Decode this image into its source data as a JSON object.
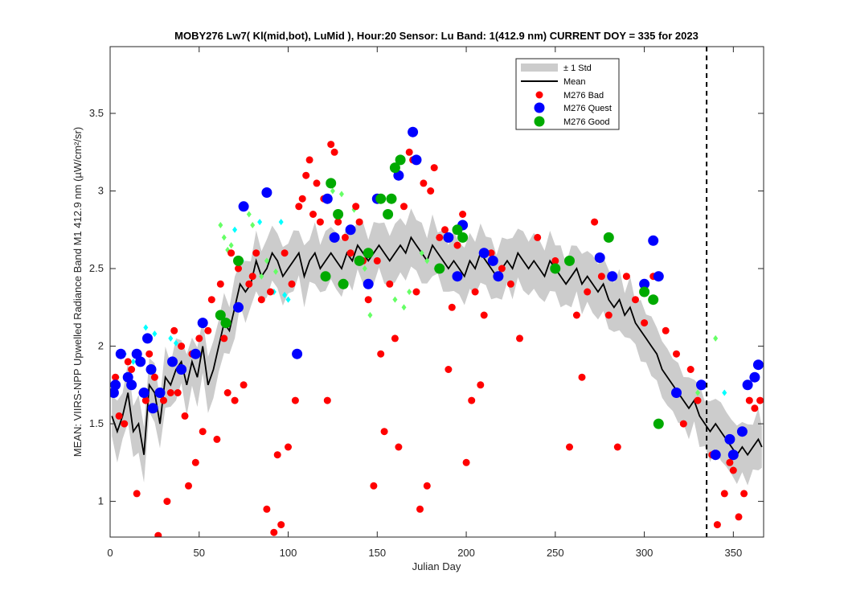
{
  "chart_data": {
    "type": "scatter",
    "title": "MOBY276   Lw7( Kl(mid,bot), LuMid ),   Hour:20 Sensor: Lu Band: 1(412.9 nm)   CURRENT DOY = 335 for 2023",
    "xlabel": "Julian Day",
    "ylabel": "MEAN: VIIRS-NPP Upwelled Radiance Band M1 412.9 nm (µW/cm²/sr)",
    "xlim": [
      0,
      367
    ],
    "ylim": [
      0.77,
      3.93
    ],
    "xticks": [
      0,
      50,
      100,
      150,
      200,
      250,
      300,
      350
    ],
    "yticks": [
      1,
      1.5,
      2,
      2.5,
      3,
      3.5
    ],
    "ytick_labels": [
      "1",
      "1.5",
      "2",
      "2.5",
      "3",
      "3.5"
    ],
    "grid": false,
    "legend_position": "top-right",
    "current_doy": 335,
    "legend": {
      "std": "± 1 Std",
      "mean": "Mean",
      "bad": "M276 Bad",
      "quest": "M276 Quest",
      "good": "M276 Good"
    },
    "colors": {
      "std": "#cccccc",
      "mean": "#000000",
      "bad": "#ff0000",
      "quest": "#0000ff",
      "good": "#00aa00",
      "cyan": "#00ffff",
      "lightgreen": "#66ff66"
    },
    "mean": {
      "x": [
        1,
        4,
        7,
        10,
        13,
        16,
        19,
        22,
        25,
        28,
        31,
        34,
        37,
        40,
        43,
        46,
        49,
        52,
        55,
        58,
        61,
        64,
        67,
        70,
        73,
        76,
        79,
        82,
        85,
        88,
        91,
        94,
        97,
        100,
        103,
        106,
        109,
        112,
        115,
        118,
        121,
        124,
        127,
        130,
        133,
        136,
        139,
        142,
        145,
        148,
        151,
        154,
        157,
        160,
        163,
        166,
        169,
        172,
        175,
        178,
        181,
        184,
        187,
        190,
        193,
        196,
        199,
        202,
        205,
        208,
        211,
        214,
        217,
        220,
        223,
        226,
        229,
        232,
        235,
        238,
        241,
        244,
        247,
        250,
        253,
        256,
        259,
        262,
        265,
        268,
        271,
        274,
        277,
        280,
        283,
        286,
        289,
        292,
        295,
        298,
        301,
        304,
        307,
        310,
        313,
        316,
        319,
        322,
        325,
        328,
        331,
        334,
        337,
        340,
        343,
        346,
        349,
        352,
        355,
        358,
        361,
        364,
        366
      ],
      "y": [
        1.55,
        1.45,
        1.55,
        1.7,
        1.45,
        1.5,
        1.3,
        1.75,
        1.7,
        1.5,
        1.8,
        1.75,
        1.85,
        1.9,
        1.75,
        1.9,
        1.8,
        2.0,
        1.75,
        1.85,
        2.0,
        2.15,
        2.1,
        2.25,
        2.4,
        2.35,
        2.4,
        2.55,
        2.45,
        2.5,
        2.6,
        2.55,
        2.45,
        2.5,
        2.55,
        2.6,
        2.45,
        2.55,
        2.6,
        2.5,
        2.55,
        2.6,
        2.55,
        2.5,
        2.6,
        2.55,
        2.65,
        2.6,
        2.55,
        2.6,
        2.65,
        2.6,
        2.55,
        2.6,
        2.65,
        2.6,
        2.7,
        2.65,
        2.6,
        2.55,
        2.65,
        2.6,
        2.55,
        2.5,
        2.55,
        2.5,
        2.45,
        2.55,
        2.5,
        2.6,
        2.55,
        2.5,
        2.45,
        2.5,
        2.55,
        2.5,
        2.6,
        2.55,
        2.5,
        2.55,
        2.5,
        2.45,
        2.55,
        2.5,
        2.45,
        2.4,
        2.45,
        2.5,
        2.4,
        2.45,
        2.4,
        2.35,
        2.4,
        2.3,
        2.25,
        2.3,
        2.2,
        2.25,
        2.15,
        2.1,
        2.05,
        2.0,
        1.95,
        1.85,
        1.8,
        1.75,
        1.7,
        1.65,
        1.6,
        1.65,
        1.55,
        1.5,
        1.45,
        1.5,
        1.45,
        1.4,
        1.35,
        1.3,
        1.35,
        1.3,
        1.35,
        1.4,
        1.35
      ]
    },
    "bad": {
      "x": [
        3,
        5,
        8,
        10,
        12,
        15,
        18,
        20,
        22,
        25,
        27,
        30,
        32,
        34,
        36,
        38,
        40,
        42,
        44,
        46,
        48,
        50,
        52,
        55,
        57,
        60,
        62,
        64,
        66,
        68,
        70,
        72,
        75,
        78,
        80,
        82,
        85,
        88,
        90,
        92,
        94,
        96,
        98,
        100,
        102,
        104,
        106,
        108,
        110,
        112,
        114,
        116,
        118,
        120,
        122,
        124,
        126,
        128,
        130,
        132,
        135,
        138,
        140,
        142,
        145,
        148,
        150,
        152,
        154,
        157,
        160,
        162,
        165,
        168,
        170,
        172,
        174,
        176,
        178,
        180,
        182,
        185,
        188,
        190,
        192,
        195,
        198,
        200,
        203,
        205,
        208,
        210,
        214,
        220,
        225,
        230,
        240,
        250,
        258,
        262,
        265,
        268,
        272,
        276,
        280,
        285,
        290,
        295,
        300,
        305,
        312,
        318,
        322,
        326,
        330,
        338,
        341,
        345,
        348,
        350,
        353,
        356,
        359,
        362,
        365
      ],
      "y": [
        1.8,
        1.55,
        1.5,
        1.9,
        1.85,
        1.05,
        1.7,
        1.65,
        1.95,
        1.8,
        0.78,
        1.65,
        1.0,
        1.7,
        2.1,
        1.7,
        2.0,
        1.55,
        1.1,
        1.95,
        1.25,
        2.05,
        1.45,
        2.1,
        2.3,
        1.4,
        2.4,
        2.05,
        1.7,
        2.6,
        1.65,
        2.5,
        1.75,
        2.4,
        2.45,
        2.6,
        2.3,
        0.95,
        2.35,
        0.8,
        1.3,
        0.85,
        2.6,
        1.35,
        2.4,
        1.65,
        2.9,
        2.95,
        3.1,
        3.2,
        2.85,
        3.05,
        2.8,
        2.95,
        1.65,
        3.3,
        3.25,
        2.8,
        2.4,
        2.7,
        2.6,
        2.9,
        2.8,
        2.55,
        2.3,
        1.1,
        2.55,
        1.95,
        1.45,
        2.4,
        2.05,
        1.35,
        2.9,
        3.25,
        3.2,
        2.35,
        0.95,
        3.05,
        1.1,
        3.0,
        3.15,
        2.7,
        2.75,
        1.85,
        2.25,
        2.65,
        2.85,
        1.25,
        1.65,
        2.35,
        1.75,
        2.2,
        2.6,
        2.5,
        2.4,
        2.05,
        2.7,
        2.55,
        1.35,
        2.2,
        1.8,
        2.35,
        2.8,
        2.45,
        2.2,
        1.35,
        2.45,
        2.3,
        2.15,
        2.45,
        2.1,
        1.95,
        1.5,
        1.85,
        1.65,
        1.3,
        0.85,
        1.05,
        1.25,
        1.2,
        0.9,
        1.05,
        1.65,
        1.6,
        1.65
      ]
    },
    "quest": {
      "x": [
        2,
        3,
        6,
        10,
        12,
        15,
        17,
        19,
        21,
        23,
        24,
        28,
        35,
        40,
        48,
        52,
        72,
        75,
        88,
        105,
        122,
        126,
        135,
        145,
        150,
        162,
        170,
        172,
        190,
        195,
        198,
        210,
        215,
        218,
        275,
        282,
        300,
        305,
        308,
        318,
        332,
        340,
        348,
        350,
        355,
        358,
        362,
        364
      ],
      "y": [
        1.7,
        1.75,
        1.95,
        1.8,
        1.75,
        1.95,
        1.9,
        1.7,
        2.05,
        1.85,
        1.6,
        1.7,
        1.9,
        1.85,
        1.95,
        2.15,
        2.25,
        2.9,
        2.99,
        1.95,
        2.95,
        2.7,
        2.75,
        2.4,
        2.95,
        3.1,
        3.38,
        3.2,
        2.7,
        2.45,
        2.78,
        2.6,
        2.55,
        2.45,
        2.57,
        2.45,
        2.4,
        2.68,
        2.45,
        1.7,
        1.75,
        1.3,
        1.4,
        1.3,
        1.45,
        1.75,
        1.8,
        1.88
      ]
    },
    "good": {
      "x": [
        62,
        65,
        72,
        121,
        124,
        128,
        131,
        140,
        145,
        152,
        156,
        158,
        160,
        163,
        185,
        195,
        198,
        250,
        258,
        280,
        300,
        305,
        308
      ],
      "y": [
        2.2,
        2.15,
        2.55,
        2.45,
        3.05,
        2.85,
        2.4,
        2.55,
        2.6,
        2.95,
        2.85,
        2.95,
        3.15,
        3.2,
        2.5,
        2.75,
        2.7,
        2.5,
        2.55,
        2.7,
        2.35,
        2.3,
        1.5
      ]
    },
    "cyan": {
      "x": [
        4,
        8,
        13,
        20,
        25,
        34,
        37,
        70,
        74,
        84,
        92,
        96,
        98,
        100,
        345
      ],
      "y": [
        1.8,
        1.95,
        1.9,
        2.12,
        2.08,
        2.05,
        2.02,
        2.75,
        2.55,
        2.8,
        2.35,
        2.8,
        2.33,
        2.3,
        1.7
      ]
    },
    "lightgreen": {
      "x": [
        62,
        64,
        66,
        68,
        78,
        80,
        85,
        88,
        93,
        125,
        130,
        137,
        143,
        146,
        160,
        165,
        168,
        175,
        178,
        183,
        330,
        340
      ],
      "y": [
        2.78,
        2.7,
        2.62,
        2.65,
        2.85,
        2.78,
        2.45,
        2.55,
        2.48,
        3.0,
        2.98,
        2.88,
        2.5,
        2.2,
        2.3,
        2.25,
        2.35,
        2.6,
        2.55,
        2.5,
        1.7,
        2.05
      ]
    }
  }
}
